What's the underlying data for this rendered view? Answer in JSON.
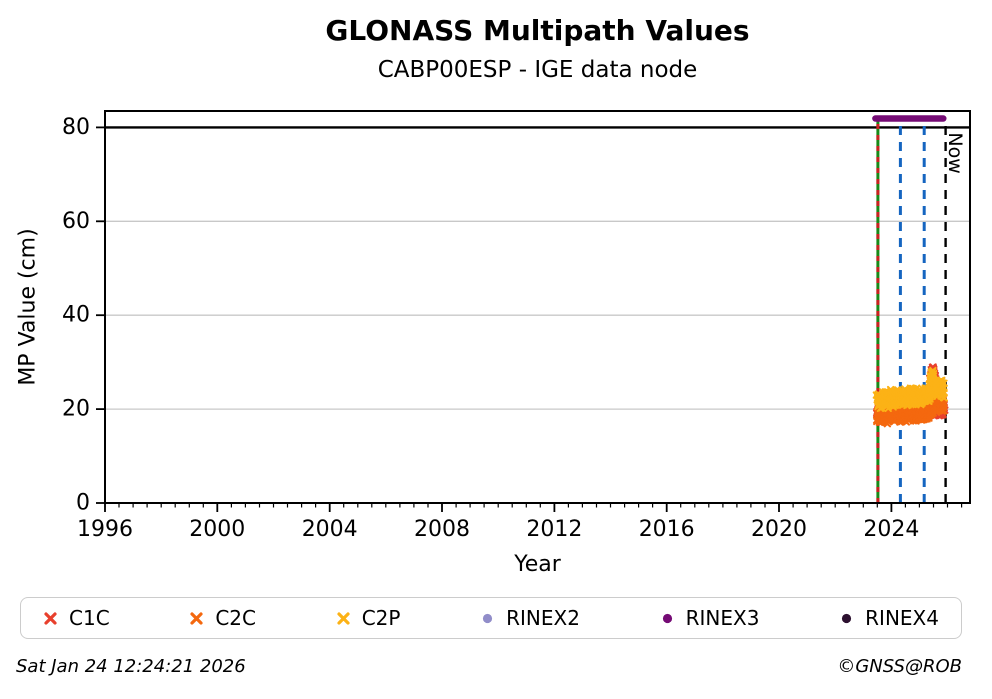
{
  "header": {
    "title": "GLONASS Multipath Values",
    "subtitle": "CABP00ESP - IGE data node"
  },
  "axes": {
    "xlabel": "Year",
    "ylabel": "MP Value (cm)"
  },
  "footer": {
    "timestamp": "Sat Jan 24 12:24:21 2026",
    "copyright": "©GNSS@ROB"
  },
  "legend": {
    "items": [
      {
        "label": "C1C",
        "marker": "x",
        "color": "#e8402d"
      },
      {
        "label": "C2C",
        "marker": "x",
        "color": "#f4680f"
      },
      {
        "label": "C2P",
        "marker": "x",
        "color": "#fcb216"
      },
      {
        "label": "RINEX2",
        "marker": "dot",
        "color": "#918dc9"
      },
      {
        "label": "RINEX3",
        "marker": "dot",
        "color": "#750b75"
      },
      {
        "label": "RINEX4",
        "marker": "dot",
        "color": "#2d1130"
      }
    ]
  },
  "chart_data": {
    "type": "scatter",
    "title": "GLONASS Multipath Values",
    "subtitle": "CABP00ESP - IGE data node",
    "xlabel": "Year",
    "ylabel": "MP Value (cm)",
    "xlim": [
      1996,
      2026.8
    ],
    "ylim": [
      0,
      83.5
    ],
    "xticks": [
      1996,
      2000,
      2004,
      2008,
      2012,
      2016,
      2020,
      2024
    ],
    "xminor_step": 0.5,
    "yticks": [
      0,
      20,
      40,
      60,
      80
    ],
    "grid": "horizontal",
    "gridcolor": "#c8c8c8",
    "framecolor": "#000000",
    "threshold_line": {
      "y": 80,
      "color": "#000000"
    },
    "now_marker": {
      "label": "Now",
      "x": 2025.93
    },
    "rinex3_bar": {
      "x_start": 2023.43,
      "x_end": 2025.85,
      "y": 81.9,
      "color": "#750b75"
    },
    "vlines": [
      {
        "x": 2023.52,
        "color": "#188a18",
        "dash": "",
        "width": 3,
        "top": 81.3
      },
      {
        "x": 2023.52,
        "color": "#cc2020",
        "dash": "5,6",
        "width": 3,
        "top": 81.3
      },
      {
        "x": 2024.32,
        "color": "#1565c0",
        "dash": "9,7",
        "width": 3,
        "top": 81.3
      },
      {
        "x": 2025.17,
        "color": "#1565c0",
        "dash": "9,7",
        "width": 3,
        "top": 81.3
      },
      {
        "x": 2025.93,
        "color": "#000000",
        "dash": "9,7",
        "width": 2.4,
        "top": 80.4
      }
    ],
    "series": [
      {
        "name": "C1C",
        "color": "#e8402d",
        "marker": "x",
        "bands": [
          {
            "half_width": 1.3,
            "x": [
              2023.5,
              2025.88
            ],
            "center": [
              19.4,
              19.9
            ]
          },
          {
            "half_width": 0.8,
            "x": [
              2025.4,
              2025.45,
              2025.5,
              2025.55
            ],
            "center": [
              26.5,
              28.8,
              28.2,
              26.0
            ]
          }
        ]
      },
      {
        "name": "C2C",
        "color": "#f4680f",
        "marker": "x",
        "bands": [
          {
            "half_width": 1.6,
            "x": [
              2023.5,
              2023.62,
              2023.74,
              2023.86,
              2023.98,
              2024.1,
              2024.22,
              2024.34,
              2024.46,
              2024.58,
              2024.7,
              2024.82,
              2024.94,
              2025.06,
              2025.18,
              2025.3,
              2025.42,
              2025.54,
              2025.66,
              2025.78,
              2025.88
            ],
            "center": [
              18.9,
              18.3,
              19.1,
              18.4,
              19.2,
              18.5,
              19.3,
              18.6,
              19.3,
              18.7,
              19.4,
              18.8,
              19.2,
              18.9,
              19.5,
              19.3,
              20.3,
              21.0,
              20.8,
              21.3,
              20.9
            ]
          }
        ]
      },
      {
        "name": "C2P",
        "color": "#fcb216",
        "marker": "x",
        "bands": [
          {
            "half_width": 1.7,
            "x": [
              2023.5,
              2023.62,
              2023.74,
              2023.86,
              2023.98,
              2024.1,
              2024.22,
              2024.34,
              2024.46,
              2024.58,
              2024.7,
              2024.82,
              2024.94,
              2025.06,
              2025.18,
              2025.3,
              2025.42,
              2025.54,
              2025.66,
              2025.78,
              2025.88
            ],
            "center": [
              22.2,
              21.6,
              22.5,
              21.8,
              22.6,
              21.9,
              22.7,
              22.0,
              22.8,
              22.1,
              22.9,
              22.3,
              23.0,
              22.5,
              23.1,
              22.8,
              24.0,
              24.8,
              24.2,
              24.5,
              24.0
            ]
          },
          {
            "half_width": 1.1,
            "x": [
              2025.38,
              2025.44,
              2025.5,
              2025.56
            ],
            "center": [
              24.5,
              27.4,
              27.0,
              24.8
            ]
          }
        ]
      },
      {
        "name": "RINEX2",
        "color": "#918dc9",
        "marker": "dot",
        "bands": []
      },
      {
        "name": "RINEX3",
        "color": "#750b75",
        "marker": "dot",
        "bands": []
      },
      {
        "name": "RINEX4",
        "color": "#2d1130",
        "marker": "dot",
        "bands": []
      }
    ]
  }
}
